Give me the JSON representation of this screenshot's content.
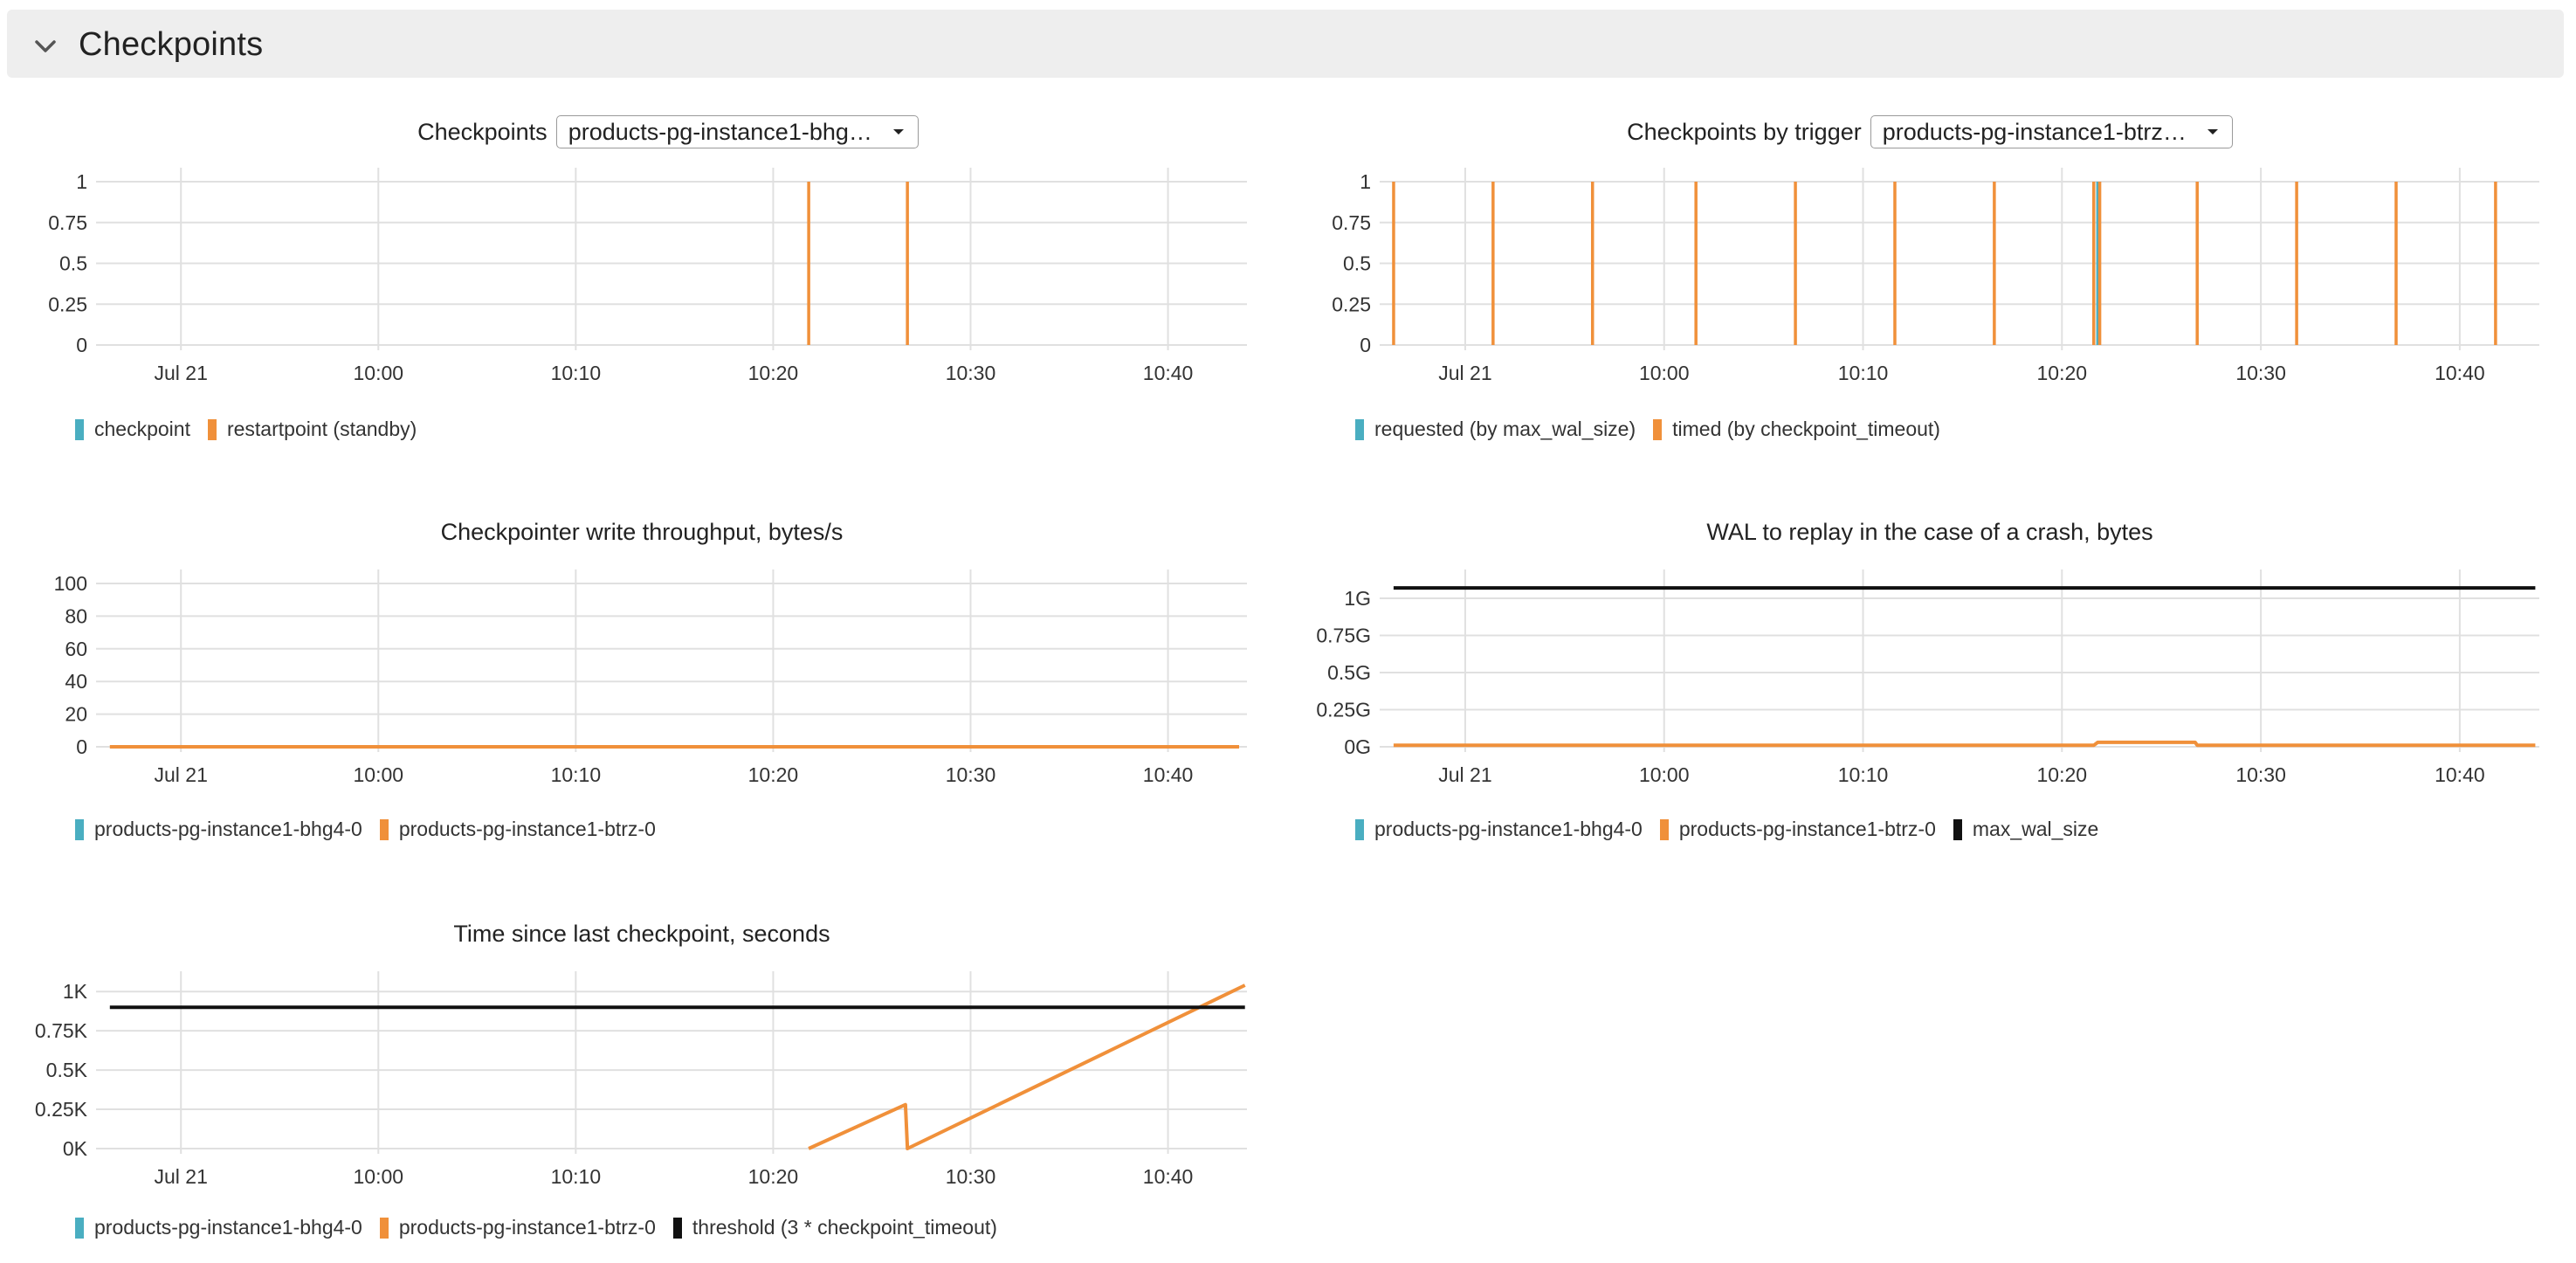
{
  "section": {
    "title": "Checkpoints",
    "icon": "chevron-down-icon"
  },
  "colors": {
    "cyan": "#4aaec1",
    "orange": "#f0903a",
    "black": "#111111",
    "grid": "#e0e0e0"
  },
  "panels": [
    {
      "id": "checkpoints",
      "title": "Checkpoints",
      "dropdown": "products-pg-instance1-bhg…",
      "legend": [
        {
          "label": "checkpoint",
          "color": "#4aaec1"
        },
        {
          "label": "restartpoint (standby)",
          "color": "#f0903a"
        }
      ]
    },
    {
      "id": "by_trigger",
      "title": "Checkpoints by trigger",
      "dropdown": "products-pg-instance1-btrz…",
      "legend": [
        {
          "label": "requested (by max_wal_size)",
          "color": "#4aaec1"
        },
        {
          "label": "timed (by checkpoint_timeout)",
          "color": "#f0903a"
        }
      ]
    },
    {
      "id": "throughput",
      "title": "Checkpointer write throughput, bytes/s",
      "legend": [
        {
          "label": "products-pg-instance1-bhg4-0",
          "color": "#4aaec1"
        },
        {
          "label": "products-pg-instance1-btrz-0",
          "color": "#f0903a"
        }
      ]
    },
    {
      "id": "wal",
      "title": "WAL to replay in the case of a crash, bytes",
      "legend": [
        {
          "label": "products-pg-instance1-bhg4-0",
          "color": "#4aaec1"
        },
        {
          "label": "products-pg-instance1-btrz-0",
          "color": "#f0903a"
        },
        {
          "label": "max_wal_size",
          "color": "#111111"
        }
      ]
    },
    {
      "id": "since_last",
      "title": "Time since last checkpoint, seconds",
      "legend": [
        {
          "label": "products-pg-instance1-bhg4-0",
          "color": "#4aaec1"
        },
        {
          "label": "products-pg-instance1-btrz-0",
          "color": "#f0903a"
        },
        {
          "label": "threshold (3 * checkpoint_timeout)",
          "color": "#111111"
        }
      ]
    }
  ],
  "chart_data": [
    {
      "type": "bar",
      "title": "Checkpoints",
      "x_ticks": [
        "Jul 21",
        "10:00",
        "10:10",
        "10:20",
        "10:30",
        "10:40"
      ],
      "x_tick_minutes": [
        -10,
        0,
        10,
        20,
        30,
        40
      ],
      "xlim_minutes": [
        -14.3,
        44
      ],
      "ylim": [
        0,
        1
      ],
      "y_ticks": [
        "0",
        "0.25",
        "0.5",
        "0.75",
        "1"
      ],
      "y_tick_values": [
        0,
        0.25,
        0.5,
        0.75,
        1
      ],
      "grid": true,
      "legend_position": "bottom-left",
      "series": [
        {
          "name": "checkpoint",
          "color": "#4aaec1",
          "events_minutes": []
        },
        {
          "name": "restartpoint (standby)",
          "color": "#f0903a",
          "events_minutes": [
            21.8,
            26.8
          ]
        }
      ]
    },
    {
      "type": "bar",
      "title": "Checkpoints by trigger",
      "x_ticks": [
        "Jul 21",
        "10:00",
        "10:10",
        "10:20",
        "10:30",
        "10:40"
      ],
      "x_tick_minutes": [
        -10,
        0,
        10,
        20,
        30,
        40
      ],
      "xlim_minutes": [
        -14.3,
        44
      ],
      "ylim": [
        0,
        1
      ],
      "y_ticks": [
        "0",
        "0.25",
        "0.5",
        "0.75",
        "1"
      ],
      "y_tick_values": [
        0,
        0.25,
        0.5,
        0.75,
        1
      ],
      "grid": true,
      "legend_position": "bottom-left",
      "series": [
        {
          "name": "requested (by max_wal_size)",
          "color": "#4aaec1",
          "events_minutes": [
            21.8
          ]
        },
        {
          "name": "timed (by checkpoint_timeout)",
          "color": "#f0903a",
          "events_minutes": [
            -13.6,
            -8.6,
            -3.6,
            1.6,
            6.6,
            11.6,
            16.6,
            21.6,
            21.9,
            26.8,
            31.8,
            36.8,
            41.8
          ]
        }
      ]
    },
    {
      "type": "line",
      "title": "Checkpointer write throughput, bytes/s",
      "x_ticks": [
        "Jul 21",
        "10:00",
        "10:10",
        "10:20",
        "10:30",
        "10:40"
      ],
      "x_tick_minutes": [
        -10,
        0,
        10,
        20,
        30,
        40
      ],
      "xlim_minutes": [
        -14.3,
        44
      ],
      "ylim": [
        0,
        100
      ],
      "y_ticks": [
        "0",
        "20",
        "40",
        "60",
        "80",
        "100"
      ],
      "y_tick_values": [
        0,
        20,
        40,
        60,
        80,
        100
      ],
      "grid": true,
      "legend_position": "bottom-left",
      "series": [
        {
          "name": "products-pg-instance1-btrz-0",
          "color": "#f0903a",
          "x": [
            -13.6,
            43.6
          ],
          "y": [
            0,
            0
          ]
        }
      ]
    },
    {
      "type": "line",
      "title": "WAL to replay in the case of a crash, bytes",
      "x_ticks": [
        "Jul 21",
        "10:00",
        "10:10",
        "10:20",
        "10:30",
        "10:40"
      ],
      "x_tick_minutes": [
        -10,
        0,
        10,
        20,
        30,
        40
      ],
      "xlim_minutes": [
        -14.3,
        44
      ],
      "ylim": [
        0,
        1.1
      ],
      "y_ticks": [
        "0G",
        "0.25G",
        "0.5G",
        "0.75G",
        "1G"
      ],
      "y_tick_values": [
        0,
        0.25,
        0.5,
        0.75,
        1
      ],
      "grid": true,
      "legend_position": "bottom-left",
      "series": [
        {
          "name": "products-pg-instance1-btrz-0",
          "color": "#f0903a",
          "x": [
            -13.6,
            21.6,
            21.8,
            26.7,
            26.8,
            43.8
          ],
          "y": [
            0.01,
            0.01,
            0.03,
            0.03,
            0.01,
            0.01
          ]
        },
        {
          "name": "max_wal_size",
          "color": "#111111",
          "x": [
            -13.6,
            43.8
          ],
          "y": [
            1.07,
            1.07
          ]
        }
      ]
    },
    {
      "type": "line",
      "title": "Time since last checkpoint, seconds",
      "x_ticks": [
        "Jul 21",
        "10:00",
        "10:10",
        "10:20",
        "10:30",
        "10:40"
      ],
      "x_tick_minutes": [
        -10,
        0,
        10,
        20,
        30,
        40
      ],
      "xlim_minutes": [
        -14.3,
        44
      ],
      "ylim": [
        0,
        1.04
      ],
      "y_ticks": [
        "0K",
        "0.25K",
        "0.5K",
        "0.75K",
        "1K"
      ],
      "y_tick_values": [
        0,
        0.25,
        0.5,
        0.75,
        1
      ],
      "grid": true,
      "legend_position": "bottom-left",
      "series": [
        {
          "name": "products-pg-instance1-btrz-0",
          "color": "#f0903a",
          "x": [
            21.8,
            26.7,
            26.8,
            43.9
          ],
          "y": [
            0.0,
            0.28,
            0.0,
            1.04
          ]
        },
        {
          "name": "threshold (3 * checkpoint_timeout)",
          "color": "#111111",
          "x": [
            -13.6,
            43.9
          ],
          "y": [
            0.9,
            0.9
          ]
        }
      ]
    }
  ]
}
